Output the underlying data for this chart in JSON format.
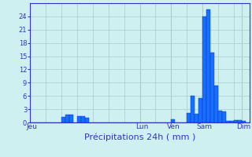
{
  "title": "",
  "xlabel": "Précipitations 24h ( mm )",
  "ylabel": "",
  "background_color": "#cff0f0",
  "bar_color": "#1a6eff",
  "bar_edge_color": "#0033bb",
  "grid_color": "#aacccc",
  "text_color": "#3333cc",
  "ylim": [
    0,
    27
  ],
  "yticks": [
    0,
    3,
    6,
    9,
    12,
    15,
    18,
    21,
    24
  ],
  "num_bars": 56,
  "day_labels": [
    "Jeu",
    "Lun",
    "Ven",
    "Sam",
    "Dim"
  ],
  "day_positions": [
    0,
    28,
    36,
    44,
    54
  ],
  "bar_values": [
    0,
    0,
    0,
    0,
    0,
    0,
    0,
    0,
    1.2,
    1.8,
    1.7,
    0,
    1.5,
    1.4,
    1.1,
    0,
    0,
    0,
    0,
    0,
    0,
    0,
    0,
    0,
    0,
    0,
    0,
    0,
    0,
    0,
    0,
    0,
    0,
    0,
    0,
    0,
    0.7,
    0,
    0,
    0,
    2.2,
    6.0,
    2.0,
    5.5,
    24.0,
    25.5,
    15.8,
    8.4,
    2.6,
    2.5,
    0.4,
    0.3,
    0.5,
    0.5,
    0.3,
    0
  ]
}
